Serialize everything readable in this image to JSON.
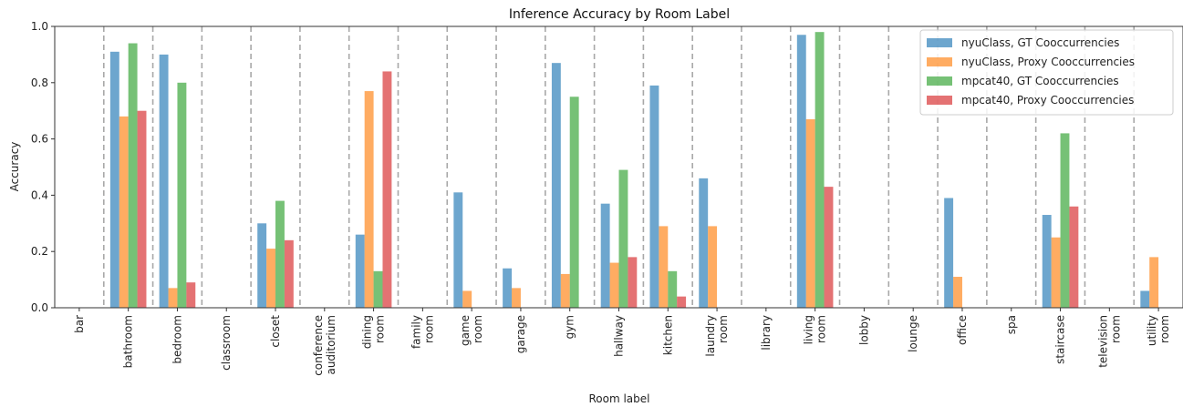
{
  "chart_data": {
    "type": "bar",
    "title": "Inference Accuracy by Room Label",
    "xlabel": "Room label",
    "ylabel": "Accuracy",
    "ylim": [
      0,
      1.0
    ],
    "yticks": [
      "0.0",
      "0.2",
      "0.4",
      "0.6",
      "0.8",
      "1.0"
    ],
    "grid": false,
    "legend_position": "top-right",
    "categories": [
      [
        "bar"
      ],
      [
        "bathroom"
      ],
      [
        "bedroom"
      ],
      [
        "classroom"
      ],
      [
        "closet"
      ],
      [
        "conference",
        "auditorium"
      ],
      [
        "dining",
        "room"
      ],
      [
        "family",
        "room"
      ],
      [
        "game",
        "room"
      ],
      [
        "garage"
      ],
      [
        "gym"
      ],
      [
        "hallway"
      ],
      [
        "kitchen"
      ],
      [
        "laundry",
        "room"
      ],
      [
        "library"
      ],
      [
        "living",
        "room"
      ],
      [
        "lobby"
      ],
      [
        "lounge"
      ],
      [
        "office"
      ],
      [
        "spa"
      ],
      [
        "staircase"
      ],
      [
        "television",
        "room"
      ],
      [
        "utility",
        "room"
      ]
    ],
    "series": [
      {
        "name": "nyuClass, GT Cooccurrencies",
        "color": "#1f77b4",
        "values": [
          0,
          0.91,
          0.9,
          0,
          0.3,
          0,
          0.26,
          0,
          0.41,
          0.14,
          0.87,
          0.37,
          0.79,
          0.46,
          0,
          0.97,
          0,
          0,
          0.39,
          0,
          0.33,
          0,
          0.06
        ]
      },
      {
        "name": "nyuClass, Proxy Cooccurrencies",
        "color": "#ff7f0e",
        "values": [
          0,
          0.68,
          0.07,
          0,
          0.21,
          0,
          0.77,
          0,
          0.06,
          0.07,
          0.12,
          0.16,
          0.29,
          0.29,
          0,
          0.67,
          0,
          0,
          0.11,
          0,
          0.25,
          0,
          0.18
        ]
      },
      {
        "name": "mpcat40, GT Cooccurrencies",
        "color": "#2ca02c",
        "values": [
          0,
          0.94,
          0.8,
          0,
          0.38,
          0,
          0.13,
          0,
          0,
          0,
          0.75,
          0.49,
          0.13,
          0,
          0,
          0.98,
          0,
          0,
          0,
          0,
          0.62,
          0,
          0
        ]
      },
      {
        "name": "mpcat40, Proxy Cooccurrencies",
        "color": "#d62728",
        "values": [
          0,
          0.7,
          0.09,
          0,
          0.24,
          0,
          0.84,
          0,
          0,
          0,
          0,
          0.18,
          0.04,
          0,
          0,
          0.43,
          0,
          0,
          0,
          0,
          0.36,
          0,
          0
        ]
      }
    ]
  }
}
